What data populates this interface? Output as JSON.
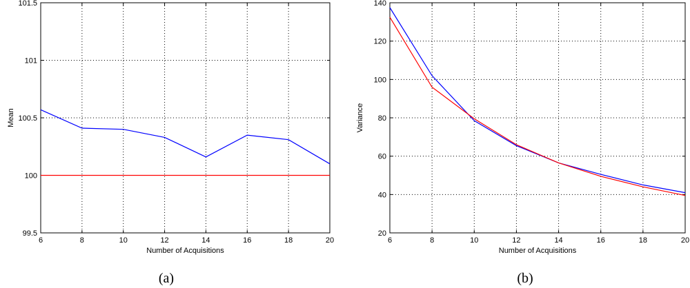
{
  "chart_data": [
    {
      "type": "line",
      "caption": "(a)",
      "xlabel": "Number of Acquisitions",
      "ylabel": "Mean",
      "xlim": [
        6,
        20
      ],
      "ylim": [
        99.5,
        101.5
      ],
      "xticks": [
        6,
        8,
        10,
        12,
        14,
        16,
        18,
        20
      ],
      "yticks": [
        99.5,
        100,
        100.5,
        101,
        101.5
      ],
      "xtick_labels": [
        "6",
        "8",
        "10",
        "12",
        "14",
        "16",
        "18",
        "20"
      ],
      "ytick_labels": [
        "99.5",
        "100",
        "100.5",
        "101",
        "101.5"
      ],
      "grid": true,
      "series": [
        {
          "color": "#0000ff",
          "x": [
            6,
            8,
            10,
            12,
            14,
            16,
            18,
            20
          ],
          "values": [
            100.57,
            100.41,
            100.4,
            100.33,
            100.16,
            100.35,
            100.31,
            100.1
          ]
        },
        {
          "color": "#ff0000",
          "x": [
            6,
            8,
            10,
            12,
            14,
            16,
            18,
            20
          ],
          "values": [
            100,
            100,
            100,
            100,
            100,
            100,
            100,
            100
          ]
        }
      ]
    },
    {
      "type": "line",
      "caption": "(b)",
      "xlabel": "Number of Acquisitions",
      "ylabel": "Variance",
      "xlim": [
        6,
        20
      ],
      "ylim": [
        20,
        140
      ],
      "xticks": [
        6,
        8,
        10,
        12,
        14,
        16,
        18,
        20
      ],
      "yticks": [
        20,
        40,
        60,
        80,
        100,
        120,
        140
      ],
      "xtick_labels": [
        "6",
        "8",
        "10",
        "12",
        "14",
        "16",
        "18",
        "20"
      ],
      "ytick_labels": [
        "20",
        "40",
        "60",
        "80",
        "100",
        "120",
        "140"
      ],
      "grid": true,
      "series": [
        {
          "color": "#0000ff",
          "x": [
            6,
            8,
            10,
            12,
            14,
            16,
            18,
            20
          ],
          "values": [
            137.5,
            102,
            78.5,
            65.5,
            56.5,
            50.5,
            45,
            41
          ]
        },
        {
          "color": "#ff0000",
          "x": [
            6,
            8,
            10,
            12,
            14,
            16,
            18,
            20
          ],
          "values": [
            132.5,
            96,
            79.5,
            66,
            56.5,
            49.5,
            44,
            39.5
          ]
        }
      ]
    }
  ]
}
